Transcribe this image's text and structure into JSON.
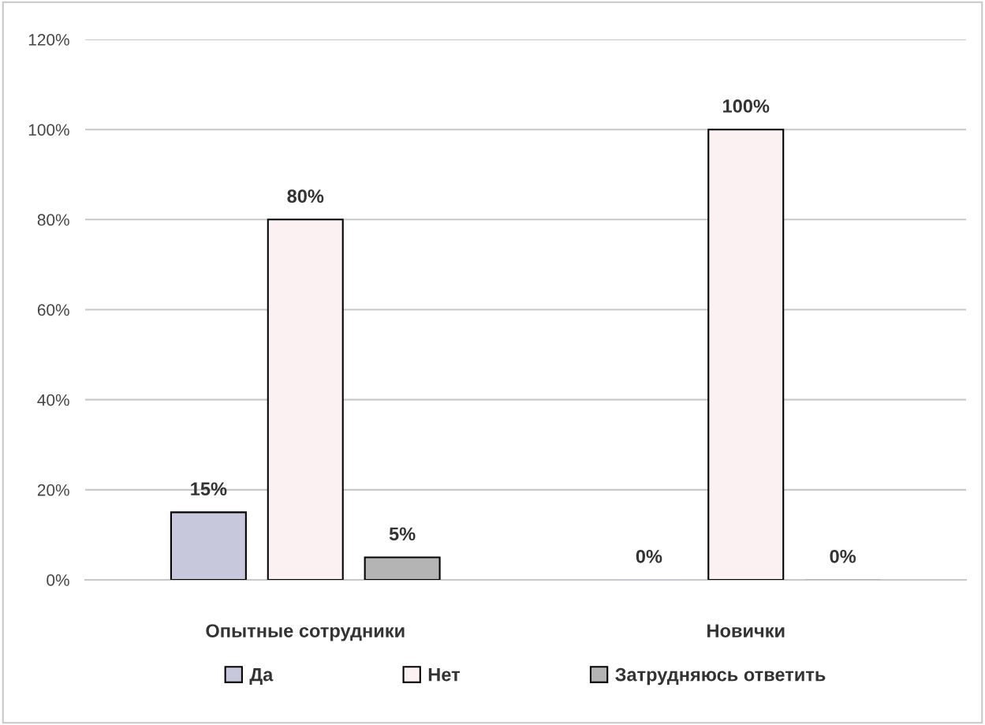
{
  "chart_data": {
    "type": "bar",
    "categories": [
      "Опытные сотрудники",
      "Новички"
    ],
    "series": [
      {
        "name": "Да",
        "color": "#c8c8dc",
        "values": [
          15,
          0
        ],
        "value_labels": [
          "15%",
          "0%"
        ]
      },
      {
        "name": "Нет",
        "color": "#fbf0f2",
        "values": [
          80,
          100
        ],
        "value_labels": [
          "80%",
          "100%"
        ]
      },
      {
        "name": "Затрудняюсь ответить",
        "color": "#b4b4b4",
        "values": [
          5,
          0
        ],
        "value_labels": [
          "5%",
          "0%"
        ]
      }
    ],
    "ylim": [
      0,
      120
    ],
    "yticks": [
      {
        "value": 0,
        "label": "0%"
      },
      {
        "value": 20,
        "label": "20%"
      },
      {
        "value": 40,
        "label": "40%"
      },
      {
        "value": 60,
        "label": "60%"
      },
      {
        "value": 80,
        "label": "80%"
      },
      {
        "value": 100,
        "label": "100%"
      },
      {
        "value": 120,
        "label": "120%"
      }
    ],
    "grid": "y",
    "legend": "bottom"
  }
}
